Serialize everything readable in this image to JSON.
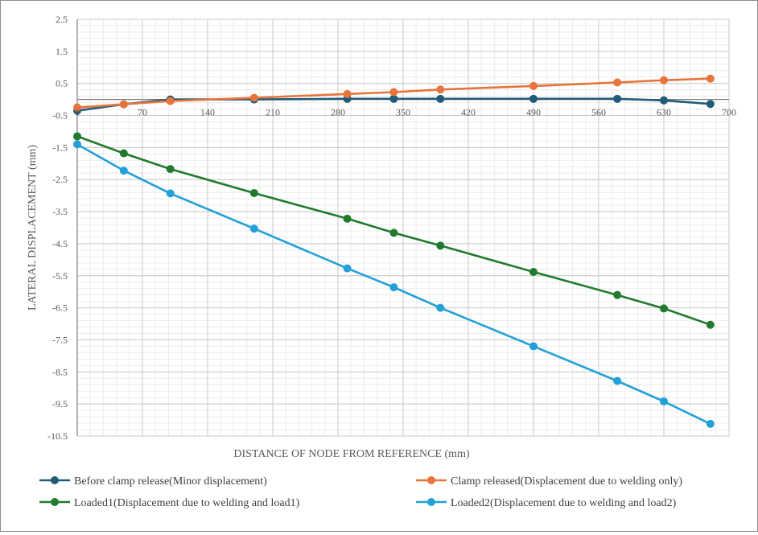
{
  "chart_data": {
    "type": "line",
    "title": "",
    "xlabel": "DISTANCE  OF NODE FROM REFERENCE (mm)",
    "ylabel": "LATERAL  DISPLACEMENT  (mm)",
    "xlim": [
      0,
      700
    ],
    "ylim": [
      -10.5,
      2.5
    ],
    "xticks": [
      0,
      70,
      140,
      210,
      280,
      350,
      420,
      490,
      560,
      630,
      700
    ],
    "yticks": [
      2.5,
      1.5,
      0.5,
      -0.5,
      -1.5,
      -2.5,
      -3.5,
      -4.5,
      -5.5,
      -6.5,
      -7.5,
      -8.5,
      -9.5,
      -10.5
    ],
    "grid": true,
    "legend_position": "bottom",
    "series": [
      {
        "name": "Before clamp release(Minor displacement)",
        "color": "#1f5b7a",
        "points": [
          [
            0,
            -0.35
          ],
          [
            50,
            -0.15
          ],
          [
            100,
            0.0
          ],
          [
            190,
            0.0
          ],
          [
            290,
            0.02
          ],
          [
            340,
            0.02
          ],
          [
            390,
            0.02
          ],
          [
            490,
            0.02
          ],
          [
            580,
            0.02
          ],
          [
            630,
            -0.03
          ],
          [
            680,
            -0.14
          ]
        ]
      },
      {
        "name": "Clamp released(Displacement due to welding only)",
        "color": "#e8743b",
        "points": [
          [
            0,
            -0.25
          ],
          [
            50,
            -0.15
          ],
          [
            100,
            -0.05
          ],
          [
            190,
            0.05
          ],
          [
            290,
            0.17
          ],
          [
            340,
            0.23
          ],
          [
            390,
            0.31
          ],
          [
            490,
            0.42
          ],
          [
            580,
            0.53
          ],
          [
            630,
            0.6
          ],
          [
            680,
            0.65
          ]
        ]
      },
      {
        "name": "Loaded1(Displacement due to welding and load1)",
        "color": "#217a2e",
        "points": [
          [
            0,
            -1.15
          ],
          [
            50,
            -1.68
          ],
          [
            100,
            -2.17
          ],
          [
            190,
            -2.92
          ],
          [
            290,
            -3.72
          ],
          [
            340,
            -4.16
          ],
          [
            390,
            -4.56
          ],
          [
            490,
            -5.38
          ],
          [
            580,
            -6.1
          ],
          [
            630,
            -6.52
          ],
          [
            680,
            -7.03
          ]
        ]
      },
      {
        "name": "Loaded2(Displacement due to welding and load2)",
        "color": "#23a0d8",
        "points": [
          [
            0,
            -1.4
          ],
          [
            50,
            -2.22
          ],
          [
            100,
            -2.93
          ],
          [
            190,
            -4.03
          ],
          [
            290,
            -5.27
          ],
          [
            340,
            -5.86
          ],
          [
            390,
            -6.5
          ],
          [
            490,
            -7.7
          ],
          [
            580,
            -8.78
          ],
          [
            630,
            -9.42
          ],
          [
            680,
            -10.12
          ]
        ]
      }
    ]
  }
}
